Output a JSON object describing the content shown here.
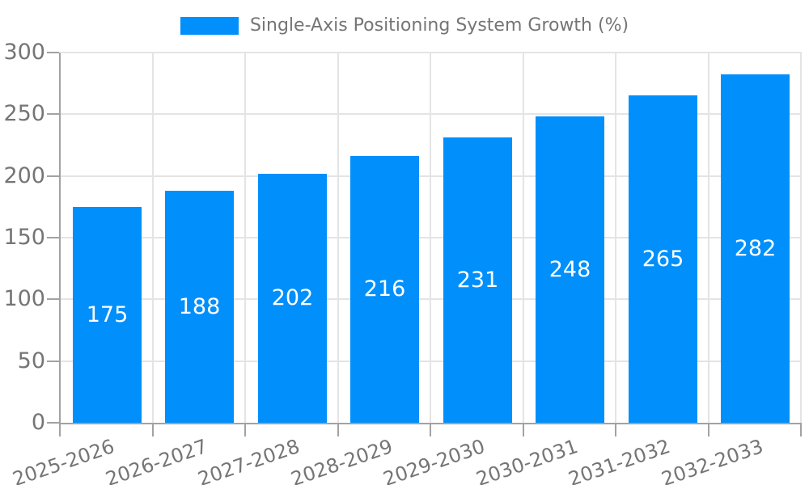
{
  "chart_data": {
    "type": "bar",
    "title": "Single-Axis Positioning System Growth (%)",
    "categories": [
      "2025-2026",
      "2026-2027",
      "2027-2028",
      "2028-2029",
      "2029-2030",
      "2030-2031",
      "2031-2032",
      "2032-2033"
    ],
    "values": [
      175,
      188,
      202,
      216,
      231,
      248,
      265,
      282
    ],
    "yticks": [
      0,
      50,
      100,
      150,
      200,
      250,
      300
    ],
    "ylim": [
      0,
      300
    ],
    "xlabel": "",
    "ylabel": "",
    "grid": true,
    "legend_position": "top",
    "value_labels": "inside-center"
  },
  "legend": {
    "items": [
      {
        "label": "Single-Axis Positioning System Growth (%)",
        "swatch_color": "#008FFB"
      }
    ]
  },
  "colors": {
    "bar": "#008FFB",
    "axis": "#a2a2a2",
    "grid": "#e4e4e4",
    "tick_text": "#757575",
    "legend_text": "#757575",
    "bar_label_text": "#ffffff",
    "background": "#ffffff"
  }
}
